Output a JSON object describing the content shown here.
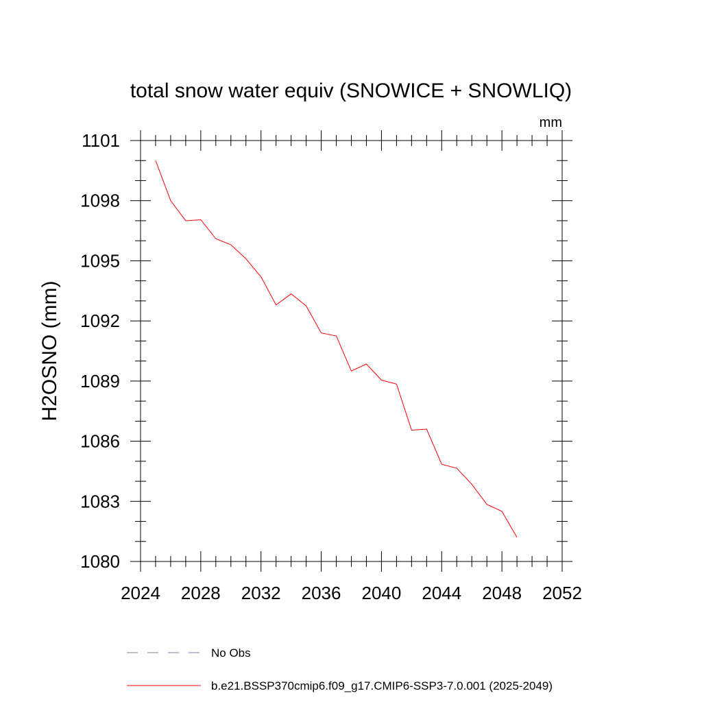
{
  "chart_data": {
    "type": "line",
    "title": "total snow water equiv (SNOWICE + SNOWLIQ)",
    "units": "mm",
    "xlabel": "",
    "ylabel": "H2OSNO  (mm)",
    "xlim": [
      2024,
      2052
    ],
    "ylim": [
      1080,
      1101
    ],
    "xticks": [
      2024,
      2028,
      2032,
      2036,
      2040,
      2044,
      2048,
      2052
    ],
    "yticks": [
      1080,
      1083,
      1086,
      1089,
      1092,
      1095,
      1098,
      1101
    ],
    "x_tick_labels": [
      "2024",
      "2028",
      "2032",
      "2036",
      "2040",
      "2044",
      "2048",
      "2052"
    ],
    "y_tick_labels": [
      "1080",
      "1083",
      "1086",
      "1089",
      "1092",
      "1095",
      "1098",
      "1101"
    ],
    "grid": false,
    "legend_position": "bottom",
    "series": [
      {
        "name": "b.e21.BSSP370cmip6.f09_g17.CMIP6-SSP3-7.0.001 (2025-2049)",
        "color": "#ff0000",
        "dash": "solid",
        "x": [
          2025,
          2026,
          2027,
          2028,
          2029,
          2030,
          2031,
          2032,
          2033,
          2034,
          2035,
          2036,
          2037,
          2038,
          2039,
          2040,
          2041,
          2042,
          2043,
          2044,
          2045,
          2046,
          2047,
          2048,
          2049
        ],
        "y": [
          1100.0,
          1098.0,
          1097.0,
          1097.05,
          1096.1,
          1095.8,
          1095.1,
          1094.2,
          1092.8,
          1093.35,
          1092.75,
          1091.4,
          1091.25,
          1089.5,
          1089.85,
          1089.05,
          1088.85,
          1086.55,
          1086.6,
          1084.85,
          1084.65,
          1083.85,
          1082.85,
          1082.5,
          1081.2
        ]
      }
    ],
    "legend": [
      {
        "label": "No Obs",
        "color": "#7f7fbf",
        "dash": "dashed"
      },
      {
        "label": "b.e21.BSSP370cmip6.f09_g17.CMIP6-SSP3-7.0.001 (2025-2049)",
        "color": "#ff0000",
        "dash": "solid"
      }
    ]
  }
}
